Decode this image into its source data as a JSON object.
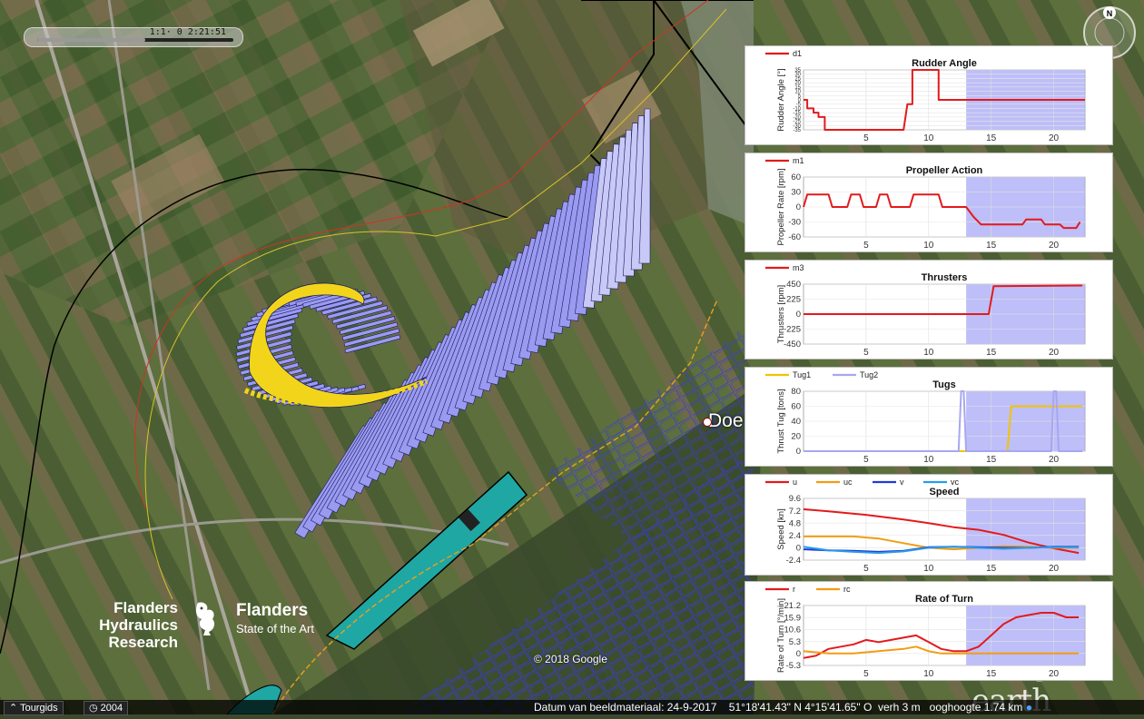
{
  "timebar": {
    "label": "1:1·  0  2:21:51",
    "progress": 0.55
  },
  "compass": {
    "label": "N"
  },
  "map": {
    "place_label": "Doe",
    "copyright": "© 2018 Google",
    "watermark": "Google earth"
  },
  "branding": {
    "left_line1": "Flanders",
    "left_line2": "Hydraulics Research",
    "right_line1": "Flanders",
    "right_line2": "State of the Art"
  },
  "statusbar": {
    "tour_button": "⌃ Tourgids",
    "year_button": "2004",
    "imagery_date": "Datum van beeldmateriaal: 24-9-2017",
    "coordinates": "51°18'41.43\" N   4°15'41.65\" O",
    "elevation": "verh    3 m",
    "eye_altitude": "ooghoogte  1.74 km"
  },
  "colors": {
    "sim_region": "#9a9af0",
    "red": "#e31a1c",
    "orange": "#f39c12",
    "blue": "#1f3bd6",
    "lightblue": "#2b9be8",
    "ship": "#9a9af0",
    "yellow": "#f2d51a"
  },
  "chart_data": [
    {
      "type": "line",
      "title": "Rudder Angle",
      "ylabel": "Rudder Angle [°]",
      "xlim": [
        0,
        22.5
      ],
      "ylim": [
        -35,
        35
      ],
      "yticks": [
        "35",
        "30",
        "25",
        "20",
        "15",
        "10",
        "5",
        "0",
        "-5",
        "-10",
        "-15",
        "-20",
        "-25",
        "-30",
        "-35"
      ],
      "xticks": [
        5,
        10,
        15,
        20
      ],
      "shade_from": 13,
      "series": [
        {
          "name": "d1",
          "color": "#e31a1c",
          "x": [
            0,
            0.3,
            0.3,
            0.8,
            0.8,
            1.2,
            1.2,
            1.7,
            1.7,
            8.0,
            8.3,
            8.7,
            8.7,
            10.8,
            10.8,
            22.5
          ],
          "y": [
            0,
            0,
            -10,
            -10,
            -15,
            -15,
            -20,
            -20,
            -35,
            -35,
            -5,
            -5,
            35,
            35,
            0,
            0
          ]
        }
      ]
    },
    {
      "type": "line",
      "title": "Propeller Action",
      "ylabel": "Propeller Rate [rpm]",
      "xlim": [
        0,
        22.5
      ],
      "ylim": [
        -60,
        60
      ],
      "yticks": [
        "60",
        "30",
        "0",
        "-30",
        "-60"
      ],
      "xticks": [
        5,
        10,
        15,
        20
      ],
      "shade_from": 13,
      "series": [
        {
          "name": "m1",
          "color": "#e31a1c",
          "x": [
            0,
            0.3,
            2,
            2.3,
            3.5,
            3.8,
            4.5,
            4.8,
            5.8,
            6.1,
            6.7,
            7.0,
            8.5,
            8.8,
            10.8,
            11.1,
            13,
            13.6,
            14.2,
            17.5,
            17.8,
            19,
            19.3,
            20.5,
            20.8,
            21.8,
            22.1
          ],
          "y": [
            0,
            25,
            25,
            0,
            0,
            25,
            25,
            0,
            0,
            25,
            25,
            0,
            0,
            25,
            25,
            0,
            0,
            -20,
            -35,
            -35,
            -25,
            -25,
            -35,
            -35,
            -42,
            -42,
            -30
          ]
        }
      ]
    },
    {
      "type": "line",
      "title": "Thrusters",
      "ylabel": "Thrusters [rpm]",
      "xlim": [
        0,
        22.5
      ],
      "ylim": [
        -450,
        450
      ],
      "yticks": [
        "450",
        "225",
        "0",
        "-225",
        "-450"
      ],
      "xticks": [
        5,
        10,
        15,
        20
      ],
      "shade_from": 13,
      "series": [
        {
          "name": "m3",
          "color": "#e31a1c",
          "x": [
            0,
            14.8,
            15.2,
            22.3
          ],
          "y": [
            0,
            0,
            420,
            430
          ]
        }
      ]
    },
    {
      "type": "line",
      "title": "Tugs",
      "ylabel": "Thrust Tug [tons]",
      "xlim": [
        0,
        22.5
      ],
      "ylim": [
        0,
        80
      ],
      "yticks": [
        "80",
        "60",
        "40",
        "20",
        "0"
      ],
      "xticks": [
        5,
        10,
        15,
        20
      ],
      "shade_from": 13,
      "series": [
        {
          "name": "Tug1",
          "color": "#f2c400",
          "x": [
            0,
            16.3,
            16.6,
            22.3
          ],
          "y": [
            0,
            0,
            60,
            60
          ]
        },
        {
          "name": "Tug2",
          "color": "#a7a7f0",
          "x": [
            0,
            12.4,
            12.6,
            12.8,
            13.0,
            19.8,
            20.0,
            20.2,
            20.4,
            22.3
          ],
          "y": [
            0,
            0,
            80,
            80,
            0,
            0,
            80,
            80,
            0,
            0
          ]
        }
      ]
    },
    {
      "type": "line",
      "title": "Speed",
      "ylabel": "Speed [kn]",
      "xlim": [
        0,
        22.5
      ],
      "ylim": [
        -2.4,
        9.6
      ],
      "yticks": [
        "9.6",
        "7.2",
        "4.8",
        "2.4",
        "0",
        "-2.4"
      ],
      "xticks": [
        5,
        10,
        15,
        20
      ],
      "shade_from": 13,
      "series": [
        {
          "name": "u",
          "color": "#e31a1c",
          "x": [
            0,
            2,
            5,
            8,
            10,
            12,
            14,
            16,
            18,
            20,
            22
          ],
          "y": [
            7.5,
            7.1,
            6.4,
            5.5,
            4.8,
            4.0,
            3.5,
            2.5,
            1.0,
            -0.1,
            -1.0
          ]
        },
        {
          "name": "uc",
          "color": "#f39c12",
          "x": [
            0,
            2,
            4,
            6,
            8,
            10,
            12,
            14,
            16,
            18,
            20,
            22
          ],
          "y": [
            2.2,
            2.2,
            2.2,
            1.8,
            0.9,
            0.0,
            -0.3,
            0.0,
            0.3,
            0.2,
            0.0,
            0.0
          ]
        },
        {
          "name": "v",
          "color": "#1f3bd6",
          "x": [
            0,
            2,
            4,
            6,
            8,
            10,
            12,
            14,
            16,
            18,
            20,
            22
          ],
          "y": [
            -0.3,
            -0.5,
            -0.6,
            -0.8,
            -0.6,
            0.1,
            0.2,
            0.1,
            0.0,
            0.0,
            0.2,
            0.2
          ]
        },
        {
          "name": "vc",
          "color": "#2b9be8",
          "x": [
            0,
            2,
            4,
            6,
            8,
            10,
            12,
            14,
            16,
            18,
            20,
            22
          ],
          "y": [
            0.2,
            -0.5,
            -0.8,
            -1.0,
            -0.7,
            0.0,
            0.2,
            0.0,
            -0.2,
            0.0,
            0.1,
            0.1
          ]
        }
      ]
    },
    {
      "type": "line",
      "title": "Rate of Turn",
      "ylabel": "Rate of Turn [°/min]",
      "xlim": [
        0,
        22.5
      ],
      "ylim": [
        -5.3,
        21.2
      ],
      "yticks": [
        "21.2",
        "15.9",
        "10.6",
        "5.3",
        "0",
        "-5.3"
      ],
      "xticks": [
        5,
        10,
        15,
        20
      ],
      "shade_from": 13,
      "series": [
        {
          "name": "r",
          "color": "#e31a1c",
          "x": [
            0,
            1,
            2,
            3,
            4,
            5,
            6,
            7,
            8,
            9,
            10,
            11,
            12,
            13,
            14,
            15,
            16,
            17,
            18,
            19,
            20,
            21,
            22
          ],
          "y": [
            -2,
            -1,
            2,
            3,
            4,
            6,
            5,
            6,
            7,
            8,
            5,
            2,
            1,
            1,
            3,
            8,
            13,
            16,
            17,
            18,
            18,
            16,
            16
          ]
        },
        {
          "name": "rc",
          "color": "#f39c12",
          "x": [
            0,
            2,
            4,
            6,
            8,
            9,
            10,
            11,
            12,
            14,
            16,
            18,
            20,
            22
          ],
          "y": [
            1,
            0,
            0,
            1,
            2,
            3,
            1,
            0,
            0,
            0,
            0,
            0,
            0,
            0
          ]
        }
      ]
    }
  ]
}
